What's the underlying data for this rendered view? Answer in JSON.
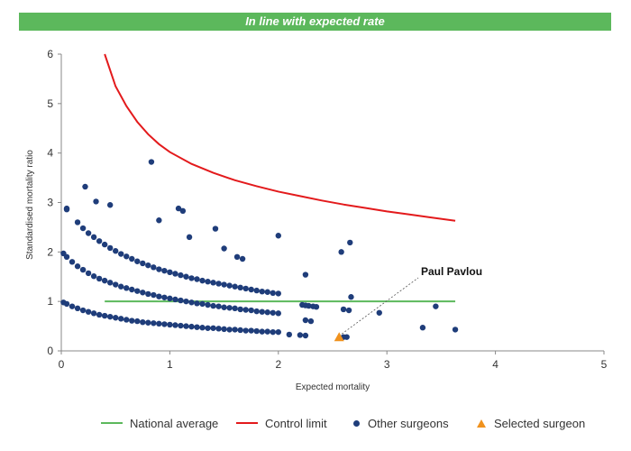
{
  "banner": {
    "text": "In line with expected rate",
    "color": "#5cb85c"
  },
  "chart_data": {
    "type": "scatter",
    "xlabel": "Expected mortality",
    "ylabel": "Standardised mortality ratio",
    "xlim": [
      0,
      5
    ],
    "ylim": [
      0,
      6
    ],
    "xticks": [
      "0",
      "1",
      "2",
      "3",
      "4",
      "5"
    ],
    "yticks": [
      "0",
      "1",
      "2",
      "3",
      "4",
      "5",
      "6"
    ],
    "grid": false,
    "legend_position": "bottom",
    "series": [
      {
        "name": "National average",
        "type": "line",
        "color": "#5cb85c",
        "x": [
          0.4,
          3.63
        ],
        "y": [
          1,
          1
        ]
      },
      {
        "name": "Control limit",
        "type": "line",
        "color": "#e31a1c",
        "x": [
          0.4,
          0.5,
          0.6,
          0.7,
          0.8,
          0.9,
          1.0,
          1.2,
          1.4,
          1.6,
          1.8,
          2.0,
          2.2,
          2.4,
          2.6,
          2.8,
          3.0,
          3.2,
          3.4,
          3.63
        ],
        "y": [
          6.0,
          5.35,
          4.95,
          4.63,
          4.38,
          4.18,
          4.02,
          3.78,
          3.6,
          3.45,
          3.33,
          3.22,
          3.13,
          3.04,
          2.96,
          2.89,
          2.82,
          2.76,
          2.7,
          2.63
        ]
      },
      {
        "name": "Other surgeons",
        "type": "scatter",
        "color": "#1f3d7a",
        "x": [
          0.02,
          0.05,
          0.1,
          0.15,
          0.2,
          0.25,
          0.3,
          0.35,
          0.4,
          0.45,
          0.5,
          0.55,
          0.6,
          0.65,
          0.7,
          0.75,
          0.8,
          0.85,
          0.9,
          0.95,
          1.0,
          1.05,
          1.1,
          1.15,
          1.2,
          1.25,
          1.3,
          1.35,
          1.4,
          1.45,
          1.5,
          1.55,
          1.6,
          1.65,
          1.7,
          1.75,
          1.8,
          1.85,
          1.9,
          1.95,
          2.0,
          2.1,
          2.2,
          2.25,
          2.6,
          2.63,
          0.02,
          0.05,
          0.1,
          0.15,
          0.2,
          0.25,
          0.3,
          0.35,
          0.4,
          0.45,
          0.5,
          0.55,
          0.6,
          0.65,
          0.7,
          0.75,
          0.8,
          0.85,
          0.9,
          0.95,
          1.0,
          1.05,
          1.1,
          1.15,
          1.2,
          1.25,
          1.3,
          1.35,
          1.4,
          1.45,
          1.5,
          1.55,
          1.6,
          1.65,
          1.7,
          1.75,
          1.8,
          1.85,
          1.9,
          1.95,
          2.0,
          2.25,
          2.3,
          2.6,
          2.65,
          0.05,
          0.15,
          0.2,
          0.25,
          0.3,
          0.35,
          0.4,
          0.45,
          0.5,
          0.55,
          0.6,
          0.65,
          0.7,
          0.75,
          0.8,
          0.85,
          0.9,
          0.95,
          1.0,
          1.05,
          1.1,
          1.15,
          1.2,
          1.25,
          1.3,
          1.35,
          1.4,
          1.45,
          1.5,
          1.55,
          1.6,
          1.65,
          1.7,
          1.75,
          1.8,
          1.85,
          1.9,
          1.95,
          2.0,
          2.22,
          2.25,
          2.28,
          2.32,
          2.35,
          2.93,
          3.33,
          3.45,
          3.63,
          2.67,
          0.05,
          0.22,
          0.32,
          0.45,
          0.83,
          0.9,
          1.08,
          1.12,
          1.18,
          1.42,
          1.5,
          1.62,
          1.67,
          2.25,
          2.66,
          2.0,
          2.58
        ],
        "y": [
          0.98,
          0.95,
          0.9,
          0.86,
          0.82,
          0.79,
          0.76,
          0.73,
          0.71,
          0.69,
          0.67,
          0.65,
          0.63,
          0.61,
          0.6,
          0.58,
          0.57,
          0.56,
          0.55,
          0.54,
          0.53,
          0.52,
          0.51,
          0.5,
          0.49,
          0.48,
          0.47,
          0.46,
          0.46,
          0.45,
          0.44,
          0.43,
          0.43,
          0.42,
          0.41,
          0.41,
          0.4,
          0.39,
          0.39,
          0.38,
          0.38,
          0.33,
          0.32,
          0.31,
          0.28,
          0.28,
          1.97,
          1.9,
          1.8,
          1.71,
          1.64,
          1.57,
          1.51,
          1.46,
          1.42,
          1.38,
          1.34,
          1.3,
          1.27,
          1.24,
          1.21,
          1.18,
          1.15,
          1.13,
          1.1,
          1.08,
          1.06,
          1.04,
          1.02,
          1.0,
          0.98,
          0.96,
          0.95,
          0.93,
          0.91,
          0.9,
          0.88,
          0.87,
          0.86,
          0.84,
          0.83,
          0.82,
          0.8,
          0.79,
          0.78,
          0.77,
          0.76,
          0.62,
          0.6,
          0.84,
          0.82,
          2.88,
          2.6,
          2.48,
          2.38,
          2.3,
          2.22,
          2.15,
          2.08,
          2.02,
          1.96,
          1.91,
          1.86,
          1.81,
          1.77,
          1.73,
          1.69,
          1.65,
          1.62,
          1.59,
          1.56,
          1.53,
          1.5,
          1.47,
          1.45,
          1.42,
          1.4,
          1.38,
          1.36,
          1.34,
          1.32,
          1.3,
          1.28,
          1.26,
          1.24,
          1.22,
          1.2,
          1.19,
          1.17,
          1.16,
          0.93,
          0.92,
          0.91,
          0.9,
          0.89,
          0.77,
          0.47,
          0.9,
          0.43,
          1.09,
          2.86,
          3.32,
          3.02,
          2.95,
          3.82,
          2.64,
          2.88,
          2.83,
          2.3,
          2.47,
          2.07,
          1.9,
          1.86,
          1.54,
          2.19,
          2.33,
          2.0
        ]
      },
      {
        "name": "Selected surgeon",
        "type": "scatter",
        "marker": "triangle",
        "color": "#f0921e",
        "x": [
          2.56
        ],
        "y": [
          0.27
        ]
      }
    ],
    "annotations": [
      {
        "text": "Paul Pavlou",
        "target_series": "Selected surgeon",
        "target_index": 0
      }
    ]
  },
  "legend": {
    "items": [
      {
        "label": "National average"
      },
      {
        "label": "Control limit"
      },
      {
        "label": "Other surgeons"
      },
      {
        "label": "Selected surgeon"
      }
    ]
  }
}
